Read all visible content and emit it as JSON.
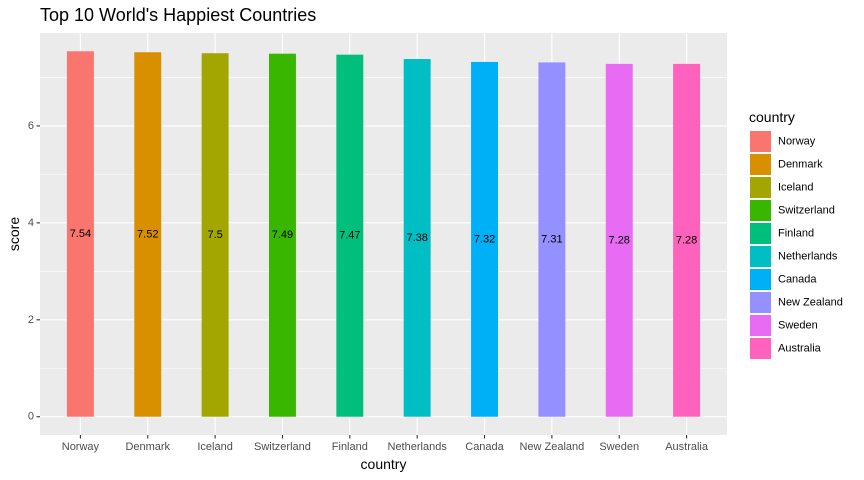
{
  "chart_data": {
    "type": "bar",
    "title": "Top 10 World's Happiest Countries",
    "xlabel": "country",
    "ylabel": "score",
    "categories": [
      "Norway",
      "Denmark",
      "Iceland",
      "Switzerland",
      "Finland",
      "Netherlands",
      "Canada",
      "New Zealand",
      "Sweden",
      "Australia"
    ],
    "values": [
      7.54,
      7.52,
      7.5,
      7.49,
      7.47,
      7.38,
      7.32,
      7.31,
      7.28,
      7.28
    ],
    "data_labels": [
      "7.54",
      "7.52",
      "7.5",
      "7.49",
      "7.47",
      "7.38",
      "7.32",
      "7.31",
      "7.28",
      "7.28"
    ],
    "colors": [
      "#F8766D",
      "#D89000",
      "#A3A500",
      "#39B600",
      "#00BF7D",
      "#00BFC4",
      "#00B0F6",
      "#9590FF",
      "#E76BF3",
      "#FF62BC"
    ],
    "ylim": [
      -0.377,
      7.917
    ],
    "yticks": [
      0,
      2,
      4,
      6
    ],
    "legend": {
      "title": "country",
      "position": "right"
    },
    "grid": true,
    "panel_background": "#EBEBEB",
    "gridline_color": "#FFFFFF"
  }
}
